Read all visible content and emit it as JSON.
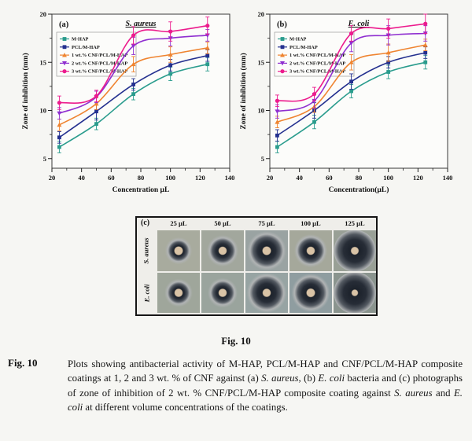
{
  "figure": {
    "title_center": "Fig. 10",
    "caption_label": "Fig. 10",
    "caption_segments": [
      {
        "text": "Plots showing antibacterial activity of M-HAP, PCL/M-HAP and CNF/PCL/M-HAP composite coatings at 1, 2 and 3 wt. % of CNF against (a) ",
        "italic": false
      },
      {
        "text": "S. aureus,",
        "italic": true
      },
      {
        "text": " (b) ",
        "italic": false
      },
      {
        "text": "E. coli",
        "italic": true
      },
      {
        "text": " bacteria and (c) photographs of zone of inhibition of 2 wt. % CNF/PCL/M-HAP composite coating against ",
        "italic": false
      },
      {
        "text": "S. aureus",
        "italic": true
      },
      {
        "text": " and ",
        "italic": false
      },
      {
        "text": "E. coli",
        "italic": true
      },
      {
        "text": " at different volume concentrations of the coatings.",
        "italic": false
      }
    ]
  },
  "chart_data": [
    {
      "type": "line",
      "panel_label": "(a)",
      "title": "S. aureus",
      "xlabel": "Concentration µL",
      "ylabel": "Zone of inhibition (mm)",
      "x": [
        25,
        50,
        75,
        100,
        125
      ],
      "xlim": [
        20,
        140
      ],
      "ylim": [
        4,
        20
      ],
      "xticks": [
        20,
        40,
        60,
        80,
        100,
        120,
        140
      ],
      "yticks": [
        5,
        10,
        15,
        20
      ],
      "legend_position": "top-left",
      "grid": false,
      "series": [
        {
          "name": "M-HAP",
          "color": "#2a9c8d",
          "marker": "square",
          "values": [
            6.2,
            8.6,
            11.7,
            13.8,
            14.8
          ],
          "err": [
            0.6,
            0.6,
            0.6,
            0.7,
            0.7
          ]
        },
        {
          "name": "PCL/M-HAP",
          "color": "#24308f",
          "marker": "square",
          "values": [
            7.2,
            9.9,
            12.7,
            14.7,
            15.7
          ],
          "err": [
            0.6,
            0.9,
            0.6,
            0.6,
            0.6
          ]
        },
        {
          "name": "1 wt.% CNF/PCL/M-HAP",
          "color": "#ef8430",
          "marker": "triangle-up",
          "values": [
            8.5,
            10.7,
            14.8,
            15.8,
            16.5
          ],
          "err": [
            0.6,
            0.6,
            0.8,
            0.8,
            0.6
          ]
        },
        {
          "name": "2 wt.% CNF/PCL/M-HAP",
          "color": "#8f2fd0",
          "marker": "triangle-down",
          "values": [
            9.7,
            11.4,
            16.7,
            17.5,
            17.8
          ],
          "err": [
            0.6,
            0.6,
            0.9,
            0.8,
            0.6
          ]
        },
        {
          "name": "3 wt.% CNF/PCL/M-HAP",
          "color": "#ec1b8d",
          "marker": "circle",
          "values": [
            10.8,
            11.5,
            17.8,
            18.2,
            18.8
          ],
          "err": [
            0.7,
            0.6,
            0.9,
            1.0,
            0.9
          ]
        }
      ]
    },
    {
      "type": "line",
      "panel_label": "(b)",
      "title": "E. coli",
      "xlabel": "Concentration(µL)",
      "ylabel": "Zone of inhibition (mm)",
      "x": [
        25,
        50,
        75,
        100,
        125
      ],
      "xlim": [
        20,
        140
      ],
      "ylim": [
        4,
        20
      ],
      "xticks": [
        20,
        40,
        60,
        80,
        100,
        120,
        140
      ],
      "yticks": [
        5,
        10,
        15,
        20
      ],
      "legend_position": "top-left",
      "grid": false,
      "series": [
        {
          "name": "M-HAP",
          "color": "#2a9c8d",
          "marker": "square",
          "values": [
            6.2,
            8.8,
            12.0,
            14.0,
            15.0
          ],
          "err": [
            0.6,
            0.7,
            0.7,
            0.7,
            0.7
          ]
        },
        {
          "name": "PCL/M-HAP",
          "color": "#24308f",
          "marker": "square",
          "values": [
            7.4,
            10.0,
            13.0,
            15.0,
            16.0
          ],
          "err": [
            0.6,
            0.8,
            0.8,
            0.6,
            0.6
          ]
        },
        {
          "name": "1 wt.% CNF/PCL/M-HAP",
          "color": "#ef8430",
          "marker": "triangle-up",
          "values": [
            8.8,
            10.4,
            15.0,
            16.0,
            16.8
          ],
          "err": [
            0.6,
            0.6,
            0.8,
            0.9,
            0.6
          ]
        },
        {
          "name": "2 wt.% CNF/PCL/M-HAP",
          "color": "#8f2fd0",
          "marker": "triangle-down",
          "values": [
            9.9,
            11.0,
            17.0,
            17.8,
            18.0
          ],
          "err": [
            0.7,
            0.8,
            0.9,
            1.0,
            0.8
          ]
        },
        {
          "name": "3 wt.% CNF/PCL/M-HAP",
          "color": "#ec1b8d",
          "marker": "circle",
          "values": [
            11.0,
            11.7,
            18.0,
            18.5,
            19.0
          ],
          "err": [
            0.6,
            0.7,
            0.8,
            1.0,
            1.0
          ]
        }
      ]
    }
  ],
  "photo_panel": {
    "label": "(c)",
    "col_headers": [
      "25 µL",
      "50 µL",
      "75 µL",
      "100 µL",
      "125 µL"
    ],
    "row_labels": [
      "S. aureus",
      "E. coli"
    ],
    "disc_color": "#d9c3a6",
    "ring_color": "#272d37",
    "rows": [
      {
        "label": "S. aureus",
        "cells": [
          {
            "agar": "#a8ab9e",
            "zone": 0.5,
            "disc": 0.18
          },
          {
            "agar": "#a2a79d",
            "zone": 0.6,
            "disc": 0.17
          },
          {
            "agar": "#9aa3a2",
            "zone": 0.78,
            "disc": 0.18
          },
          {
            "agar": "#a5a89b",
            "zone": 0.64,
            "disc": 0.17
          },
          {
            "agar": "#99a096",
            "zone": 0.97,
            "disc": 0.16
          }
        ]
      },
      {
        "label": "E. coli",
        "cells": [
          {
            "agar": "#9fa69b",
            "zone": 0.52,
            "disc": 0.17
          },
          {
            "agar": "#9aa49d",
            "zone": 0.56,
            "disc": 0.17
          },
          {
            "agar": "#97a4a3",
            "zone": 0.8,
            "disc": 0.17
          },
          {
            "agar": "#8f9da0",
            "zone": 0.76,
            "disc": 0.18
          },
          {
            "agar": "#8a948e",
            "zone": 0.98,
            "disc": 0.13
          }
        ]
      }
    ]
  },
  "colors": {
    "page_bg": "#f6f6f3",
    "plot_bg": "#fcfcfa",
    "frame": "#3a3a3a",
    "text": "#111111"
  }
}
